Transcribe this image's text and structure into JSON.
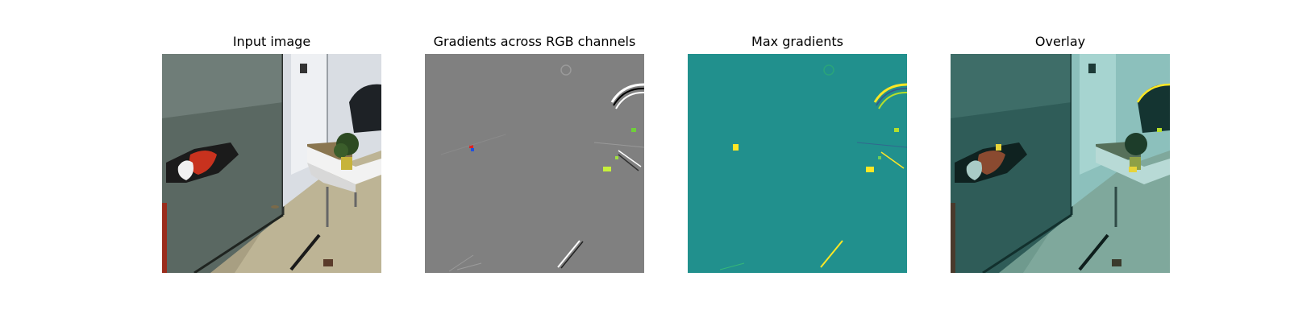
{
  "figure": {
    "panels": [
      {
        "title": "Input image",
        "content": "photo-of-robot-arm-in-office"
      },
      {
        "title": "Gradients across RGB channels",
        "content": "rgb-gradient-map"
      },
      {
        "title": "Max gradients",
        "content": "max-gradient-heatmap"
      },
      {
        "title": "Overlay",
        "content": "heatmap-overlay-on-photo"
      }
    ],
    "colors": {
      "gradient_background": "#808080",
      "heatmap_background": "#21908d",
      "heatmap_high": "#fde725",
      "overlay_tint": "#2a8f8a",
      "gripper_red": "#c8321e"
    }
  }
}
